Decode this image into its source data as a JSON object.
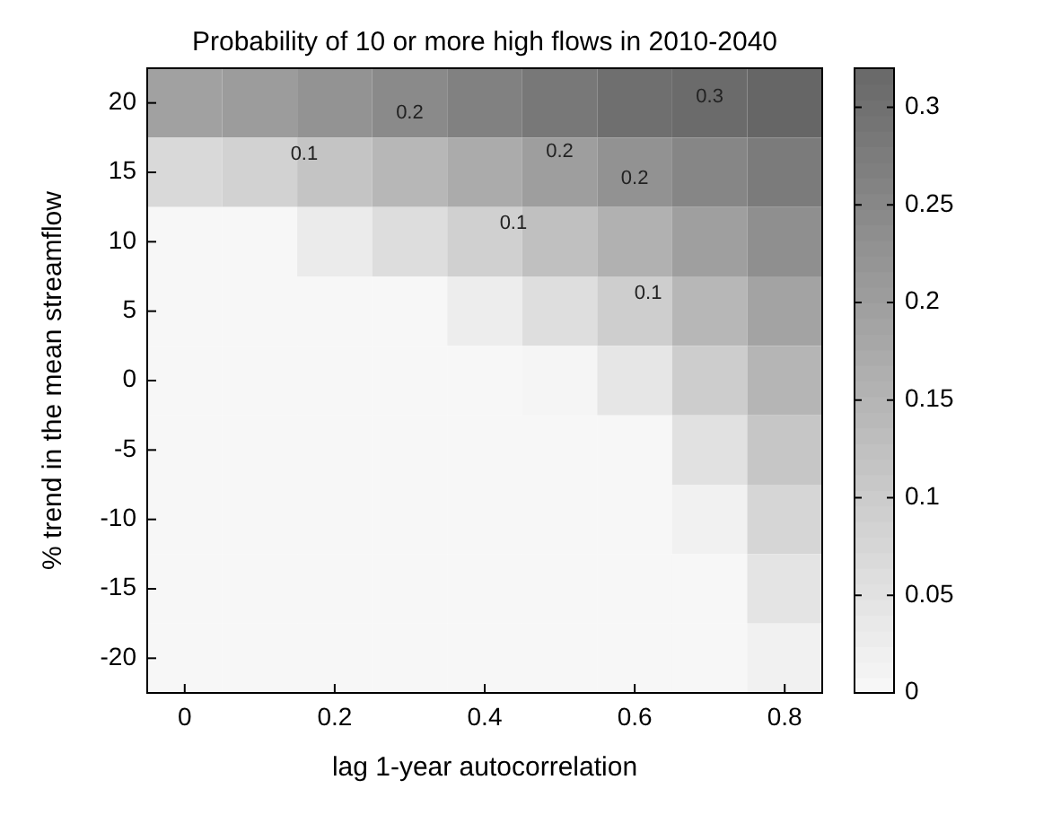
{
  "chart_data": {
    "type": "heatmap",
    "title": "Probability of 10 or more high flows in 2010-2040",
    "xlabel": "lag 1-year autocorrelation",
    "ylabel": "% trend in the mean streamflow",
    "categories": [
      "0",
      null,
      "0.2",
      null,
      "0.4",
      null,
      "0.6",
      null,
      "0.8"
    ],
    "y_categories": [
      "20",
      "15",
      "10",
      "5",
      "0",
      "-5",
      "-10",
      "-15",
      "-20"
    ],
    "cells": [
      [
        0.19,
        0.2,
        0.22,
        0.24,
        0.26,
        0.28,
        0.3,
        0.31,
        0.32
      ],
      [
        0.066,
        0.081,
        0.113,
        0.142,
        0.168,
        0.197,
        0.224,
        0.25,
        0.274
      ],
      [
        0,
        0,
        0.027,
        0.058,
        0.087,
        0.121,
        0.155,
        0.194,
        0.229
      ],
      [
        0,
        0,
        0,
        0,
        0.021,
        0.055,
        0.091,
        0.141,
        0.186
      ],
      [
        0,
        0,
        0,
        0,
        0,
        0.005,
        0.037,
        0.092,
        0.146
      ],
      [
        0,
        0,
        0,
        0,
        0,
        0,
        0,
        0.049,
        0.108
      ],
      [
        0,
        0,
        0,
        0,
        0,
        0,
        0,
        0.014,
        0.072
      ],
      [
        0,
        0,
        0,
        0,
        0,
        0,
        0,
        0,
        0.041
      ],
      [
        0,
        0,
        0,
        0,
        0,
        0,
        0,
        0,
        0.014
      ]
    ],
    "clim": [
      0,
      0.32
    ],
    "cticks": [
      0,
      0.05,
      0.1,
      0.15,
      0.2,
      0.25,
      0.3
    ],
    "annotations": [
      "0.2",
      "0.1",
      "0.2",
      "0.1",
      "0.3",
      "0.2",
      "0.1"
    ]
  }
}
